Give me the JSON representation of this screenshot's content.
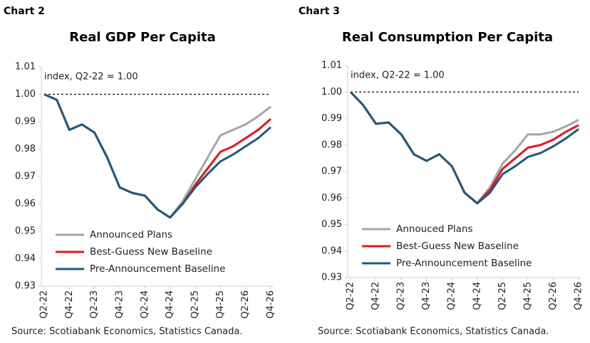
{
  "chart_data": [
    {
      "type": "line",
      "label": "Chart 2",
      "title": "Real GDP Per Capita",
      "annotation": "index, Q2-22 = 1.00",
      "source": "Source: Scotiabank Economics, Statistics Canada.",
      "categories": [
        "Q2-22",
        null,
        "Q4-22",
        null,
        "Q2-23",
        null,
        "Q4-23",
        null,
        "Q2-24",
        null,
        "Q4-24",
        null,
        "Q2-25",
        null,
        "Q4-25",
        null,
        "Q2-26",
        null,
        "Q4-26"
      ],
      "series": [
        {
          "name": "Announced Plans",
          "color": "#a6a6a6",
          "values": [
            1.0,
            0.998,
            0.987,
            0.989,
            0.986,
            0.977,
            0.966,
            0.964,
            0.963,
            0.958,
            0.955,
            0.961,
            0.969,
            0.977,
            0.985,
            0.987,
            0.989,
            0.992,
            0.9955
          ]
        },
        {
          "name": "Best-Guess New Baseline",
          "color": "#e8141e",
          "values": [
            1.0,
            0.998,
            0.987,
            0.989,
            0.986,
            0.977,
            0.966,
            0.964,
            0.963,
            0.958,
            0.955,
            0.96,
            0.967,
            0.973,
            0.979,
            0.981,
            0.984,
            0.987,
            0.991
          ]
        },
        {
          "name": "Pre-Announcement Baseline",
          "color": "#1d5a7d",
          "values": [
            1.0,
            0.998,
            0.987,
            0.989,
            0.986,
            0.977,
            0.966,
            0.964,
            0.963,
            0.958,
            0.955,
            0.96,
            0.966,
            0.971,
            0.9755,
            0.978,
            0.981,
            0.984,
            0.988
          ]
        }
      ],
      "ylim": [
        0.93,
        1.01
      ],
      "yticks": [
        0.93,
        0.94,
        0.95,
        0.96,
        0.97,
        0.98,
        0.99,
        {
          "value": 1,
          "label": "1.00"
        },
        1.01
      ],
      "reference_line": 1,
      "legend": "lower left"
    },
    {
      "type": "line",
      "label": "Chart 3",
      "title": "Real Consumption Per Capita",
      "annotation": "index, Q2-22 = 1.00",
      "source": "Source: Scotiabank Economics, Statistics Canada.",
      "categories": [
        "Q2-22",
        null,
        "Q4-22",
        null,
        "Q2-23",
        null,
        "Q4-23",
        null,
        "Q2-24",
        null,
        "Q4-24",
        null,
        "Q2-25",
        null,
        "Q4-25",
        null,
        "Q2-26",
        null,
        "Q4-26"
      ],
      "series": [
        {
          "name": "Annouced Plans",
          "color": "#a6a6a6",
          "values": [
            1.0,
            0.995,
            0.988,
            0.9885,
            0.984,
            0.9765,
            0.974,
            0.9765,
            0.972,
            0.962,
            0.958,
            0.964,
            0.973,
            0.978,
            0.984,
            0.984,
            0.985,
            0.987,
            0.9895
          ]
        },
        {
          "name": "Best-Guess New Baseline",
          "color": "#e8141e",
          "values": [
            1.0,
            0.995,
            0.988,
            0.9885,
            0.984,
            0.9765,
            0.974,
            0.9765,
            0.972,
            0.962,
            0.958,
            0.963,
            0.971,
            0.975,
            0.979,
            0.98,
            0.982,
            0.985,
            0.9875
          ]
        },
        {
          "name": "Pre-Announcement Baseline",
          "color": "#1d5a7d",
          "values": [
            1.0,
            0.995,
            0.988,
            0.9885,
            0.984,
            0.9765,
            0.974,
            0.9765,
            0.972,
            0.962,
            0.958,
            0.962,
            0.969,
            0.972,
            0.9755,
            0.977,
            0.9795,
            0.9825,
            0.986
          ]
        }
      ],
      "ylim": [
        0.93,
        1.01
      ],
      "yticks": [
        0.93,
        0.94,
        0.95,
        0.96,
        0.97,
        0.98,
        0.99,
        {
          "value": 1,
          "label": "1.00"
        },
        1.01
      ],
      "reference_line": 1,
      "legend": "lower left"
    }
  ]
}
